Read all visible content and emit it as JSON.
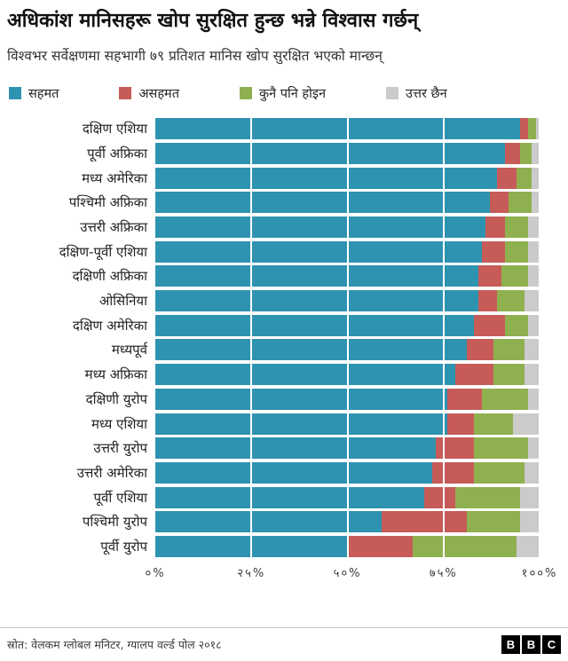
{
  "header": {
    "title": "अधिकांश मानिसहरू खोप सुरक्षित हुन्छ भन्ने विश्वास गर्छन्",
    "subtitle": "विश्वभर सर्वेक्षणमा सहभागी ७९ प्रतिशत मानिस खोप सुरक्षित भएको मान्छन्"
  },
  "chart_data": {
    "type": "bar",
    "orientation": "horizontal",
    "stacked": true,
    "grid": "vertical-white-lines-over-bars",
    "legend_position": "top",
    "xlim": [
      0,
      100
    ],
    "categories": [
      "दक्षिण एशिया",
      "पूर्वी अफ्रिका",
      "मध्य अमेरिका",
      "पश्चिमी अफ्रिका",
      "उत्तरी अफ्रिका",
      "दक्षिण-पूर्वी एशिया",
      "दक्षिणी अफ्रिका",
      "ओसिनिया",
      "दक्षिण अमेरिका",
      "मध्यपूर्व",
      "मध्य अफ्रिका",
      "दक्षिणी युरोप",
      "मध्य एशिया",
      "उत्तरी युरोप",
      "उत्तरी अमेरिका",
      "पूर्वी एशिया",
      "पश्चिमी युरोप",
      "पूर्वी युरोप"
    ],
    "series": [
      {
        "key": "agree",
        "name": "सहमत",
        "color": "#2E93B0",
        "values": [
          95,
          91,
          89,
          87,
          86,
          85,
          84,
          84,
          83,
          81,
          78,
          76,
          76,
          73,
          72,
          70,
          59,
          50
        ]
      },
      {
        "key": "disagree",
        "name": "असहमत",
        "color": "#C65B58",
        "values": [
          2,
          4,
          5,
          5,
          5,
          6,
          6,
          5,
          8,
          7,
          10,
          9,
          7,
          10,
          11,
          8,
          22,
          17
        ]
      },
      {
        "key": "neither",
        "name": "कुनै पनि होइन",
        "color": "#8FB04F",
        "values": [
          2,
          3,
          4,
          6,
          6,
          6,
          7,
          7,
          6,
          8,
          8,
          12,
          10,
          14,
          13,
          17,
          14,
          27
        ]
      },
      {
        "key": "no_answer",
        "name": "उत्तर छैन",
        "color": "#CBCBCB",
        "values": [
          1,
          2,
          2,
          2,
          3,
          3,
          3,
          4,
          3,
          4,
          4,
          3,
          7,
          3,
          4,
          5,
          5,
          6
        ]
      }
    ],
    "x_ticks": [
      {
        "value": 0,
        "label": "०%"
      },
      {
        "value": 25,
        "label": "२५%"
      },
      {
        "value": 50,
        "label": "५०%"
      },
      {
        "value": 75,
        "label": "७५%"
      },
      {
        "value": 100,
        "label": "१००%"
      }
    ]
  },
  "footer": {
    "source": "स्रोत: वेलकम ग्लोबल मनिटर, ग्यालप वर्ल्ड पोल २०१८",
    "logo_letters": [
      "B",
      "B",
      "C"
    ]
  }
}
